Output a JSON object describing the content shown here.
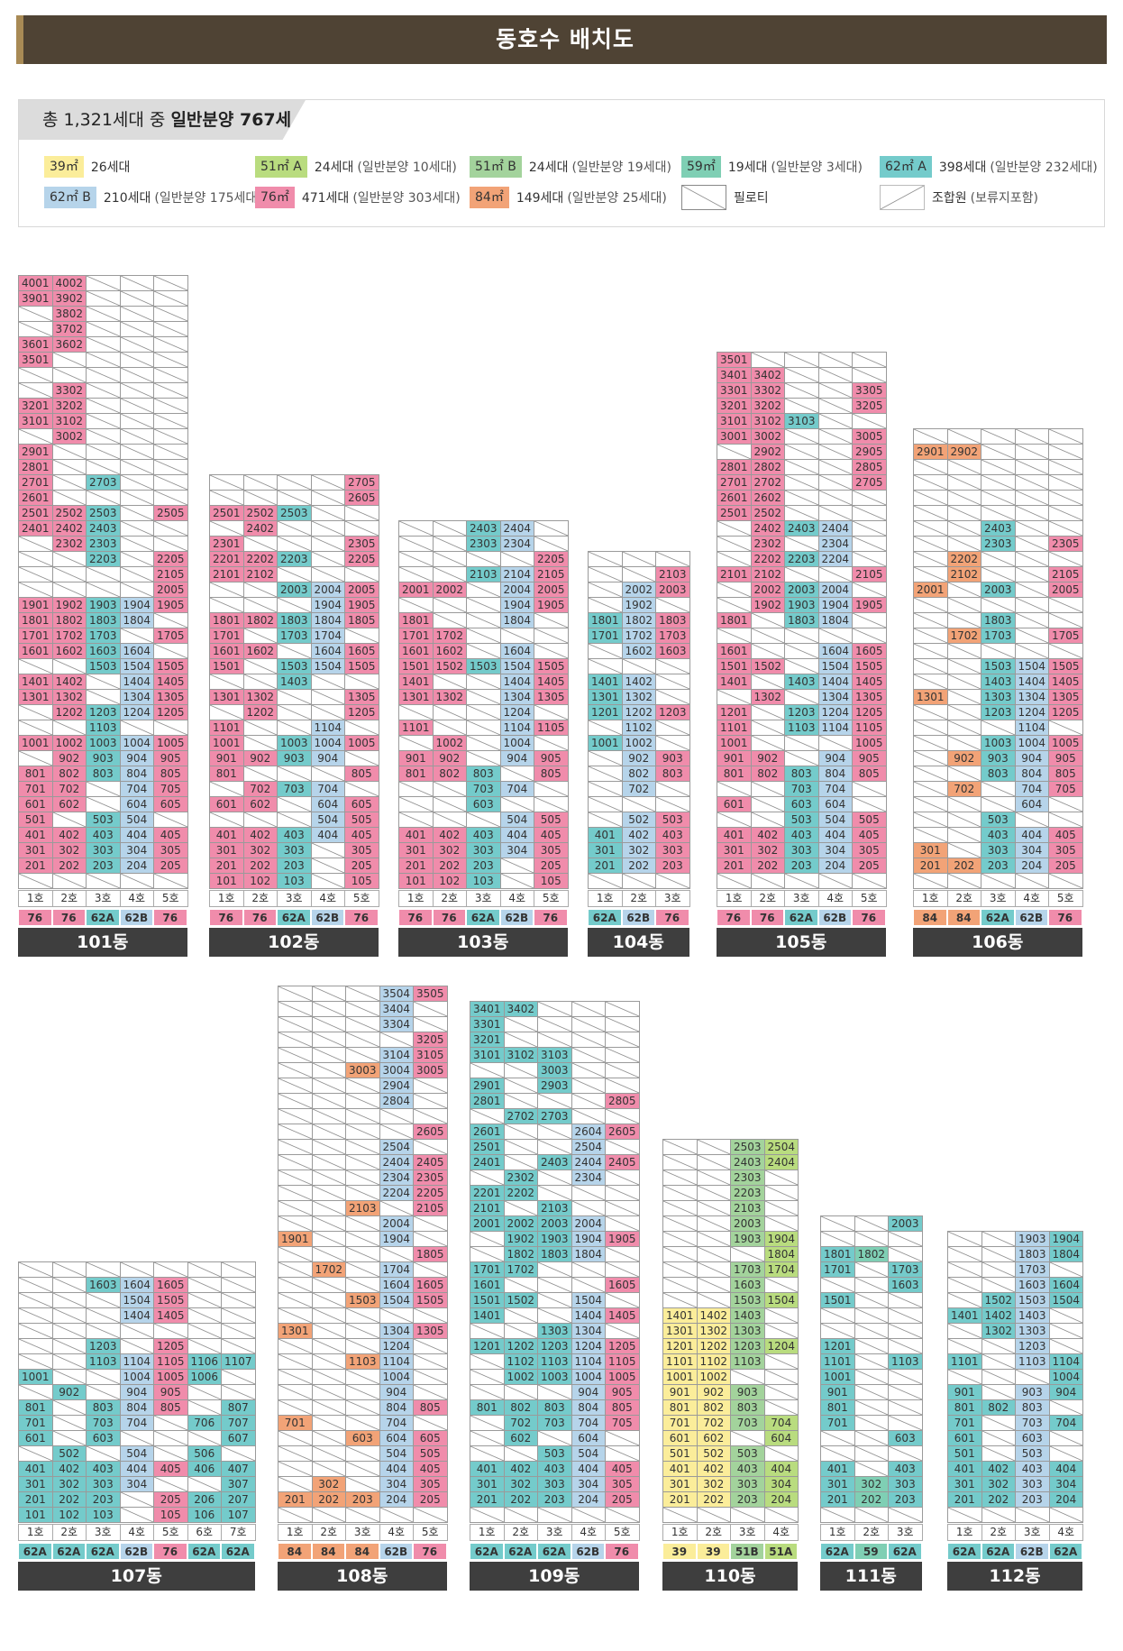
{
  "title": "동호수 배치도",
  "summary": {
    "prefix": "총 1,321세대 중 ",
    "strong": "일반분양 767세대"
  },
  "legend": [
    {
      "label": "39㎡",
      "count": "26세대",
      "note": "",
      "color": "#fbed9a",
      "kind": "swatch"
    },
    {
      "label": "51㎡ A",
      "count": "24세대",
      "note": "(일반분양 10세대)",
      "color": "#b9dc7f",
      "kind": "swatch"
    },
    {
      "label": "51㎡ B",
      "count": "24세대",
      "note": "(일반분양 19세대)",
      "color": "#a3d39c",
      "kind": "swatch"
    },
    {
      "label": "59㎡",
      "count": "19세대",
      "note": "(일반분양 3세대)",
      "color": "#7fcfb4",
      "kind": "swatch"
    },
    {
      "label": "62㎡ A",
      "count": "398세대",
      "note": "(일반분양 232세대)",
      "color": "#74cbcb",
      "kind": "swatch"
    },
    {
      "label": "62㎡ B",
      "count": "210세대",
      "note": "(일반분양 175세대)",
      "color": "#b6d4ea",
      "kind": "swatch"
    },
    {
      "label": "76㎡",
      "count": "471세대",
      "note": "(일반분양 303세대)",
      "color": "#f08cab",
      "kind": "swatch"
    },
    {
      "label": "84㎡",
      "count": "149세대",
      "note": "(일반분양 25세대)",
      "color": "#f2a377",
      "kind": "swatch"
    },
    {
      "label": "",
      "count": "필로티",
      "note": "",
      "color": "",
      "kind": "pilotis"
    },
    {
      "label": "",
      "count": "조합원",
      "note": "(보류지포함)",
      "color": "",
      "kind": "member"
    }
  ],
  "colors": {
    "39": "#fbed9a",
    "51A": "#b9dc7f",
    "51B": "#a3d39c",
    "59": "#7fcfb4",
    "62A": "#74cbcb",
    "62B": "#b6d4ea",
    "76": "#f08cab",
    "84": "#f2a377"
  },
  "buildings": [
    {
      "name": "101동",
      "cols": [
        "1호",
        "2호",
        "3호",
        "4호",
        "5호"
      ],
      "types": [
        "76",
        "76",
        "62A",
        "62B",
        "76"
      ],
      "maxFloor": 40,
      "sale": {
        "1": [
          40,
          39,
          36,
          35,
          32,
          31,
          29,
          28,
          27,
          26,
          25,
          24,
          19,
          18,
          17,
          16,
          14,
          13,
          10,
          8,
          7,
          6,
          5,
          4,
          3,
          2
        ],
        "2": [
          40,
          39,
          38,
          37,
          36,
          33,
          32,
          31,
          30,
          25,
          24,
          23,
          19,
          18,
          17,
          16,
          14,
          13,
          12,
          10,
          9,
          8,
          7,
          6,
          4,
          3,
          2
        ],
        "3": [
          27,
          25,
          24,
          23,
          22,
          19,
          18,
          17,
          16,
          15,
          12,
          11,
          10,
          9,
          8,
          5,
          4,
          3,
          2
        ],
        "4": [
          19,
          18,
          16,
          15,
          14,
          13,
          12,
          10,
          9,
          8,
          7,
          6,
          5,
          4,
          3,
          2
        ],
        "5": [
          25,
          22,
          21,
          20,
          19,
          17,
          15,
          14,
          13,
          12,
          10,
          9,
          8,
          7,
          6,
          4,
          3,
          2
        ]
      }
    },
    {
      "name": "102동",
      "cols": [
        "1호",
        "2호",
        "3호",
        "4호",
        "5호"
      ],
      "types": [
        "76",
        "76",
        "62A",
        "62B",
        "76"
      ],
      "maxFloor": 27,
      "sale": {
        "1": [
          25,
          23,
          22,
          21,
          18,
          17,
          16,
          15,
          13,
          11,
          10,
          9,
          8,
          6,
          4,
          3,
          2,
          1
        ],
        "2": [
          25,
          24,
          22,
          21,
          18,
          16,
          13,
          12,
          9,
          7,
          6,
          4,
          3,
          2,
          1
        ],
        "3": [
          25,
          22,
          20,
          18,
          17,
          15,
          14,
          10,
          9,
          7,
          4,
          3,
          2,
          1
        ],
        "4": [
          20,
          19,
          18,
          17,
          16,
          15,
          11,
          10,
          9,
          7,
          6,
          5,
          4
        ],
        "5": [
          27,
          26,
          23,
          22,
          20,
          19,
          18,
          16,
          15,
          13,
          12,
          10,
          8,
          6,
          5,
          4,
          3,
          2,
          1
        ]
      }
    },
    {
      "name": "103동",
      "cols": [
        "1호",
        "2호",
        "3호",
        "4호",
        "5호"
      ],
      "types": [
        "76",
        "76",
        "62A",
        "62B",
        "76"
      ],
      "maxFloor": 24,
      "sale": {
        "1": [
          20,
          18,
          17,
          16,
          15,
          14,
          13,
          11,
          9,
          8,
          4,
          3,
          2,
          1
        ],
        "2": [
          20,
          17,
          16,
          15,
          13,
          10,
          9,
          8,
          4,
          3,
          2,
          1
        ],
        "3": [
          24,
          23,
          21,
          15,
          8,
          7,
          6,
          4,
          3,
          2,
          1
        ],
        "4": [
          24,
          23,
          21,
          20,
          19,
          18,
          16,
          15,
          14,
          13,
          12,
          11,
          10,
          9,
          7,
          5,
          4,
          3
        ],
        "5": [
          25,
          22,
          21,
          20,
          19,
          15,
          14,
          13,
          11,
          9,
          8,
          5,
          4,
          3,
          2,
          1
        ]
      }
    },
    {
      "name": "104동",
      "cols": [
        "1호",
        "2호",
        "3호"
      ],
      "types": [
        "62A",
        "62B",
        "76"
      ],
      "maxFloor": 22,
      "sale": {
        "1": [
          18,
          17,
          14,
          13,
          12,
          10,
          4,
          3,
          2
        ],
        "2": [
          20,
          19,
          18,
          17,
          16,
          14,
          13,
          12,
          11,
          10,
          9,
          8,
          7,
          5,
          4,
          3,
          2
        ],
        "3": [
          21,
          20,
          18,
          17,
          16,
          12,
          9,
          8,
          5,
          4,
          3,
          2
        ]
      }
    },
    {
      "name": "105동",
      "cols": [
        "1호",
        "2호",
        "3호",
        "4호",
        "5호"
      ],
      "types": [
        "76",
        "76",
        "62A",
        "62B",
        "76"
      ],
      "maxFloor": 35,
      "sale": {
        "1": [
          35,
          34,
          33,
          32,
          31,
          30,
          28,
          27,
          26,
          25,
          21,
          18,
          16,
          15,
          14,
          12,
          11,
          10,
          9,
          8,
          6,
          4,
          3,
          2
        ],
        "2": [
          34,
          33,
          32,
          31,
          30,
          29,
          28,
          27,
          26,
          25,
          24,
          23,
          22,
          21,
          20,
          19,
          15,
          13,
          9,
          8,
          4,
          3,
          2
        ],
        "3": [
          31,
          24,
          22,
          20,
          19,
          18,
          14,
          12,
          11,
          8,
          7,
          6,
          5,
          4,
          3,
          2
        ],
        "4": [
          24,
          23,
          22,
          20,
          19,
          18,
          16,
          15,
          14,
          13,
          12,
          11,
          9,
          8,
          7,
          6,
          5,
          4,
          3,
          2
        ],
        "5": [
          33,
          32,
          30,
          29,
          28,
          27,
          21,
          19,
          16,
          15,
          14,
          13,
          12,
          11,
          10,
          9,
          8,
          5,
          4,
          3,
          2
        ]
      }
    },
    {
      "name": "106동",
      "cols": [
        "1호",
        "2호",
        "3호",
        "4호",
        "5호"
      ],
      "types": [
        "84",
        "84",
        "62A",
        "62B",
        "76"
      ],
      "maxFloor": 30,
      "sale": {
        "1": [
          29,
          20,
          13,
          3,
          2
        ],
        "2": [
          29,
          22,
          21,
          17,
          9,
          7,
          2
        ],
        "3": [
          24,
          23,
          20,
          18,
          17,
          15,
          14,
          13,
          12,
          10,
          9,
          8,
          5,
          4,
          3,
          2
        ],
        "4": [
          15,
          14,
          13,
          12,
          11,
          10,
          9,
          8,
          7,
          6,
          4,
          3,
          2
        ],
        "5": [
          23,
          21,
          20,
          17,
          15,
          14,
          13,
          12,
          10,
          9,
          8,
          7,
          4,
          3,
          2
        ]
      }
    },
    {
      "name": "107동",
      "cols": [
        "1호",
        "2호",
        "3호",
        "4호",
        "5호",
        "6호",
        "7호"
      ],
      "types": [
        "62A",
        "62A",
        "62A",
        "62B",
        "76",
        "62A",
        "62A"
      ],
      "maxFloor": 17,
      "sale": {
        "1": [
          10,
          8,
          7,
          6,
          4,
          3,
          2,
          1
        ],
        "2": [
          9,
          5,
          4,
          3,
          2,
          1
        ],
        "3": [
          16,
          12,
          11,
          8,
          7,
          6,
          4,
          3,
          2,
          1
        ],
        "4": [
          16,
          15,
          14,
          11,
          10,
          9,
          8,
          7,
          5,
          4,
          3
        ],
        "5": [
          16,
          15,
          14,
          12,
          11,
          10,
          9,
          8,
          4,
          2,
          1
        ],
        "6": [
          11,
          10,
          7,
          5,
          4,
          2,
          1
        ],
        "7": [
          11,
          8,
          7,
          6,
          4,
          3,
          2,
          1
        ]
      }
    },
    {
      "name": "108동",
      "cols": [
        "1호",
        "2호",
        "3호",
        "4호",
        "5호"
      ],
      "types": [
        "84",
        "84",
        "84",
        "62B",
        "76"
      ],
      "maxFloor": 35,
      "sale": {
        "1": [
          19,
          13,
          7,
          2
        ],
        "2": [
          17,
          3,
          2
        ],
        "3": [
          30,
          21,
          15,
          11,
          6,
          2
        ],
        "4": [
          35,
          34,
          33,
          31,
          30,
          29,
          28,
          25,
          24,
          23,
          22,
          20,
          19,
          17,
          16,
          15,
          13,
          12,
          11,
          10,
          9,
          8,
          7,
          6,
          5,
          4,
          3,
          2
        ],
        "5": [
          35,
          32,
          31,
          30,
          26,
          24,
          23,
          22,
          21,
          18,
          16,
          15,
          13,
          8,
          6,
          5,
          4,
          3,
          2
        ]
      }
    },
    {
      "name": "109동",
      "cols": [
        "1호",
        "2호",
        "3호",
        "4호",
        "5호"
      ],
      "types": [
        "62A",
        "62A",
        "62A",
        "62B",
        "76"
      ],
      "maxFloor": 34,
      "sale": {
        "1": [
          34,
          33,
          32,
          31,
          29,
          28,
          26,
          25,
          24,
          22,
          21,
          20,
          17,
          16,
          15,
          14,
          12,
          8,
          4,
          3,
          2
        ],
        "2": [
          34,
          31,
          27,
          23,
          22,
          20,
          19,
          18,
          17,
          15,
          12,
          11,
          10,
          8,
          7,
          6,
          4,
          3,
          2
        ],
        "3": [
          31,
          30,
          29,
          27,
          24,
          21,
          20,
          19,
          18,
          13,
          12,
          11,
          10,
          8,
          7,
          5,
          4,
          3,
          2
        ],
        "4": [
          26,
          25,
          24,
          23,
          20,
          19,
          18,
          15,
          14,
          13,
          12,
          11,
          10,
          9,
          8,
          7,
          6,
          5,
          4,
          3,
          2
        ],
        "5": [
          28,
          26,
          24,
          19,
          16,
          14,
          12,
          11,
          10,
          9,
          8,
          7,
          4,
          3,
          2
        ]
      }
    },
    {
      "name": "110동",
      "cols": [
        "1호",
        "2호",
        "3호",
        "4호"
      ],
      "types": [
        "39",
        "39",
        "51B",
        "51A"
      ],
      "maxFloor": 25,
      "sale": {
        "1": [
          14,
          13,
          12,
          11,
          10,
          9,
          8,
          7,
          6,
          5,
          4,
          3,
          2
        ],
        "2": [
          14,
          13,
          12,
          11,
          10,
          9,
          8,
          7,
          6,
          5,
          4,
          3,
          2
        ],
        "3": [
          25,
          24,
          23,
          22,
          21,
          20,
          19,
          17,
          16,
          15,
          14,
          13,
          12,
          11,
          9,
          8,
          7,
          5,
          4,
          3,
          2
        ],
        "4": [
          25,
          24,
          19,
          18,
          17,
          15,
          12,
          7,
          6,
          4,
          3,
          2
        ]
      }
    },
    {
      "name": "111동",
      "cols": [
        "1호",
        "2호",
        "3호"
      ],
      "types": [
        "62A",
        "59",
        "62A"
      ],
      "maxFloor": 20,
      "sale": {
        "1": [
          18,
          17,
          15,
          12,
          11,
          10,
          9,
          8,
          7,
          4,
          3,
          2
        ],
        "2": [
          18,
          3,
          2
        ],
        "3": [
          20,
          17,
          16,
          11,
          6,
          4,
          3,
          2
        ]
      }
    },
    {
      "name": "112동",
      "cols": [
        "1호",
        "2호",
        "3호",
        "4호"
      ],
      "types": [
        "62A",
        "62A",
        "62B",
        "62A"
      ],
      "maxFloor": 19,
      "sale": {
        "1": [
          14,
          11,
          9,
          8,
          7,
          6,
          5,
          4,
          3,
          2
        ],
        "2": [
          15,
          14,
          13,
          8,
          4,
          3,
          2
        ],
        "3": [
          19,
          18,
          17,
          16,
          15,
          14,
          13,
          12,
          11,
          9,
          8,
          7,
          6,
          5,
          4,
          3,
          2
        ],
        "4": [
          19,
          18,
          16,
          15,
          11,
          10,
          9,
          7,
          4,
          3,
          2
        ]
      }
    }
  ]
}
